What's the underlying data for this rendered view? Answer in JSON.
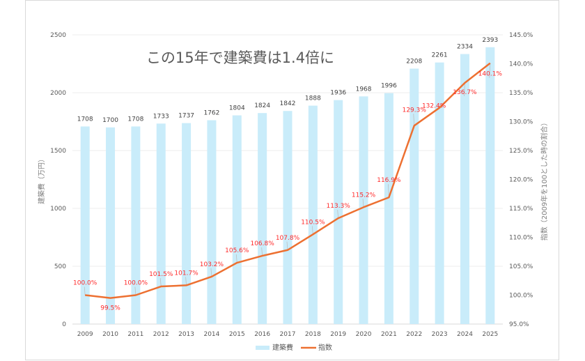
{
  "chart_data": {
    "type": "bar+line",
    "title": "この15年で建築費は1.4倍に",
    "categories": [
      "2009",
      "2010",
      "2011",
      "2012",
      "2013",
      "2014",
      "2015",
      "2016",
      "2017",
      "2018",
      "2019",
      "2020",
      "2021",
      "2022",
      "2023",
      "2024",
      "2025"
    ],
    "series": [
      {
        "name": "建築費",
        "type": "bar",
        "axis": "left",
        "color": "#c9ecfa",
        "values": [
          1708,
          1700,
          1708,
          1733,
          1737,
          1762,
          1804,
          1824,
          1842,
          1888,
          1936,
          1968,
          1996,
          2208,
          2261,
          2334,
          2393
        ],
        "labels": [
          "1708",
          "1700",
          "1708",
          "1733",
          "1737",
          "1762",
          "1804",
          "1824",
          "1842",
          "1888",
          "1936",
          "1968",
          "1996",
          "2208",
          "2261",
          "2334",
          "2393"
        ]
      },
      {
        "name": "指数",
        "type": "line",
        "axis": "right",
        "color": "#ed7031",
        "values": [
          100.0,
          99.5,
          100.0,
          101.5,
          101.7,
          103.2,
          105.6,
          106.8,
          107.8,
          110.5,
          113.3,
          115.2,
          116.9,
          129.3,
          132.4,
          136.7,
          140.1
        ],
        "labels": [
          "100.0%",
          "99.5%",
          "100.0%",
          "101.5%",
          "101.7%",
          "103.2%",
          "105.6%",
          "106.8%",
          "107.8%",
          "110.5%",
          "113.3%",
          "115.2%",
          "116.9%",
          "129.3%",
          "132.4%",
          "136.7%",
          "140.1%"
        ]
      }
    ],
    "ylabel": "建築費（万円）",
    "y2label": "指数（2009年を100とした時の割合）",
    "ylim": [
      0,
      2500
    ],
    "y2lim": [
      95,
      145
    ],
    "yticks": [
      "0",
      "500",
      "1000",
      "1500",
      "2000",
      "2500"
    ],
    "y2ticks": [
      "95.0%",
      "100.0%",
      "105.0%",
      "110.0%",
      "115.0%",
      "120.0%",
      "125.0%",
      "130.0%",
      "135.0%",
      "140.0%",
      "145.0%"
    ],
    "grid": true,
    "legend_position": "bottom",
    "label_color": "#ff2a2a"
  }
}
